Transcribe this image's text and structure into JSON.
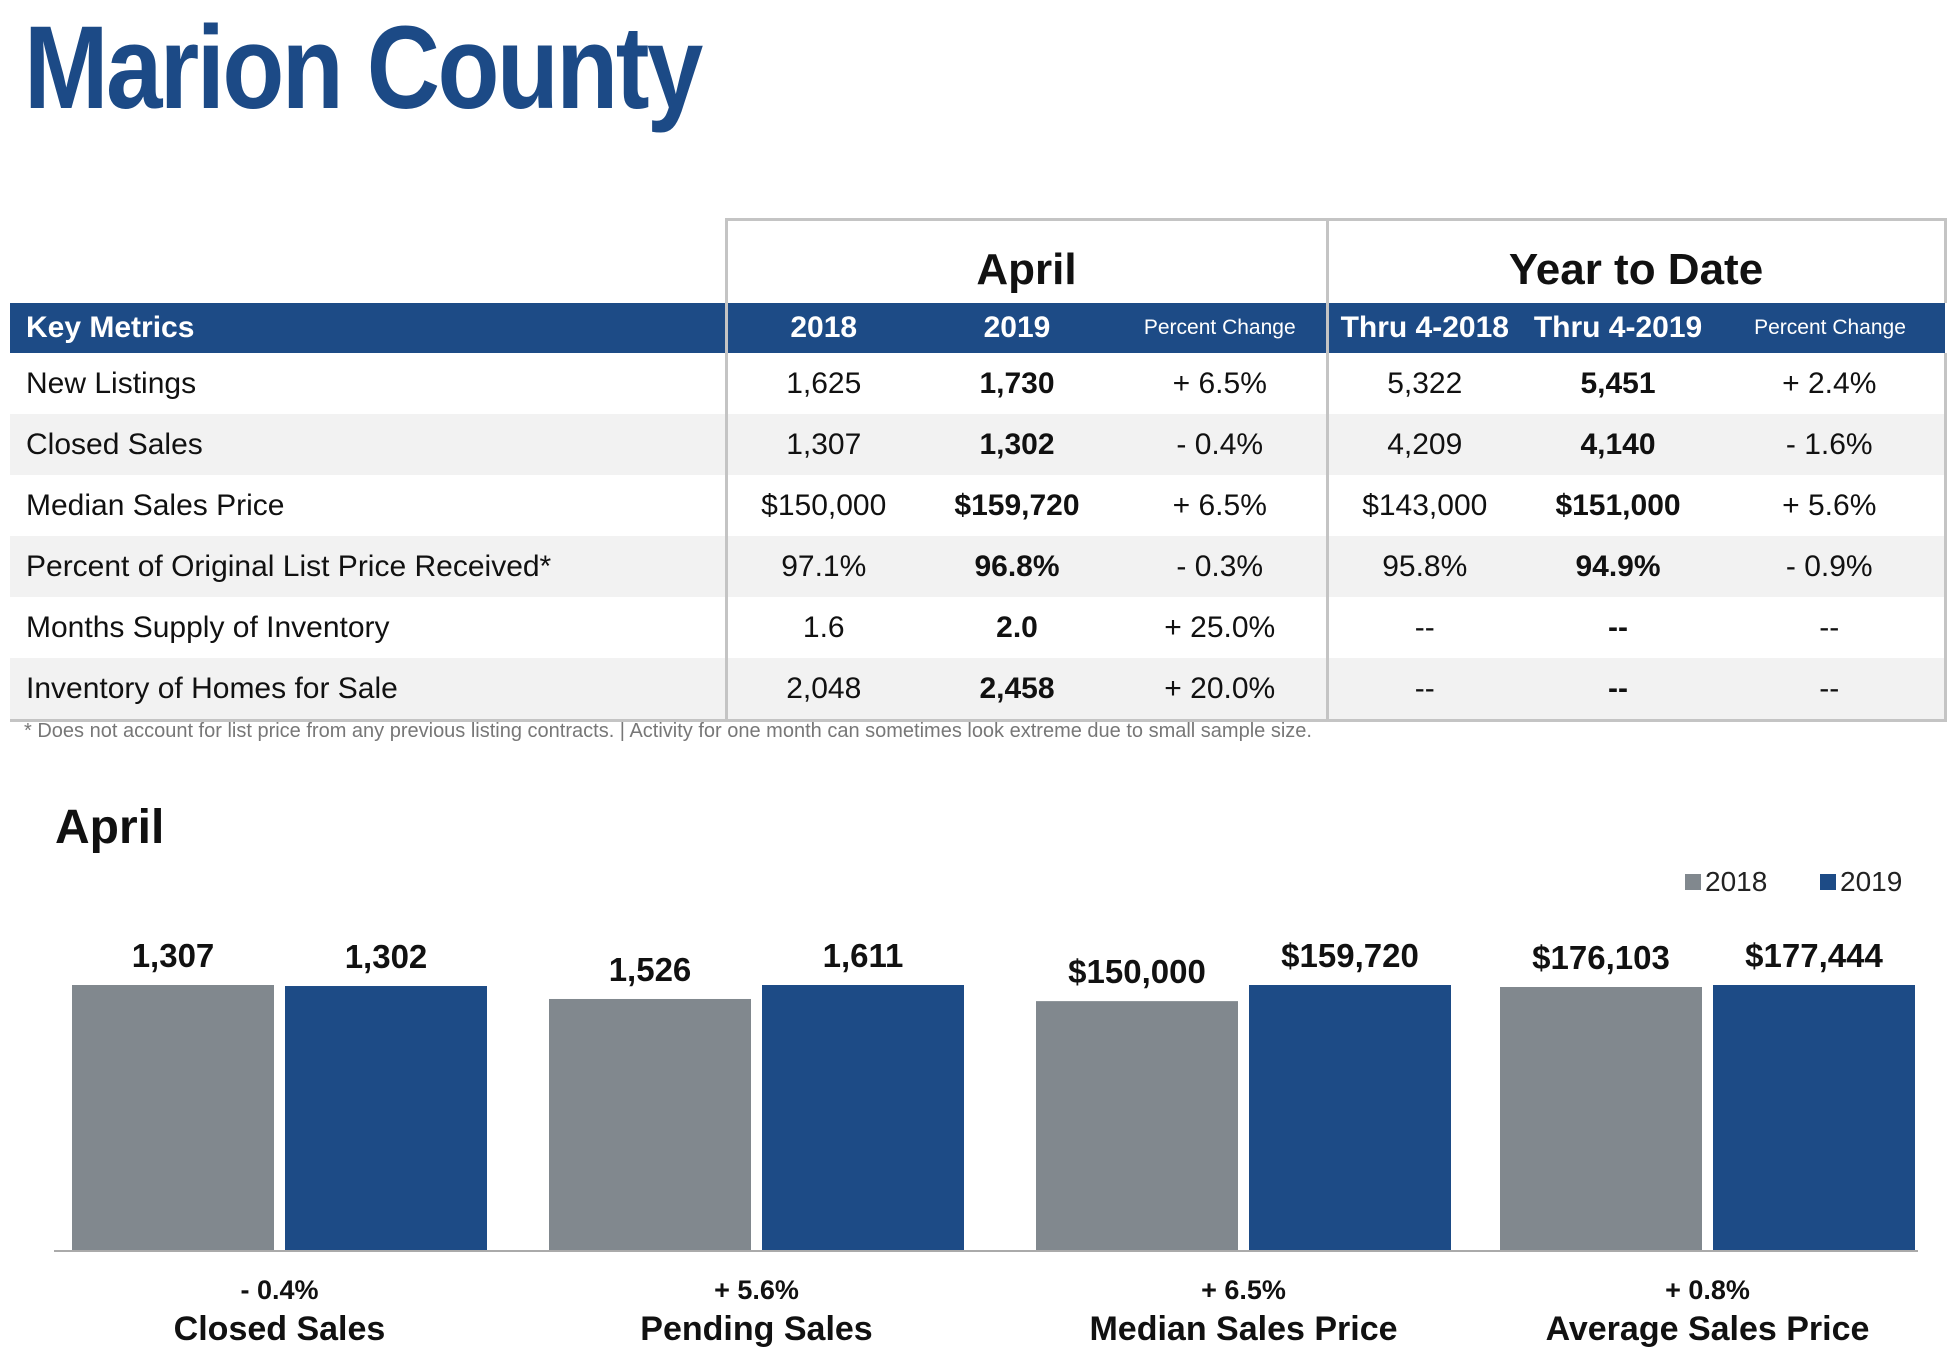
{
  "title": "Marion County",
  "table": {
    "april_label": "April",
    "ytd_label": "Year to Date",
    "headers": [
      "Key Metrics",
      "2018",
      "2019",
      "Percent Change",
      "Thru 4-2018",
      "Thru 4-2019",
      "Percent Change"
    ],
    "rows": [
      [
        "New Listings",
        "1,625",
        "1,730",
        "+ 6.5%",
        "5,322",
        "5,451",
        "+ 2.4%"
      ],
      [
        "Closed Sales",
        "1,307",
        "1,302",
        "- 0.4%",
        "4,209",
        "4,140",
        "- 1.6%"
      ],
      [
        "Median Sales Price",
        "$150,000",
        "$159,720",
        "+ 6.5%",
        "$143,000",
        "$151,000",
        "+ 5.6%"
      ],
      [
        "Percent of Original List Price Received*",
        "97.1%",
        "96.8%",
        "- 0.3%",
        "95.8%",
        "94.9%",
        "- 0.9%"
      ],
      [
        "Months Supply of Inventory",
        "1.6",
        "2.0",
        "+ 25.0%",
        "--",
        "--",
        "--"
      ],
      [
        "Inventory of Homes for Sale",
        "2,048",
        "2,458",
        "+ 20.0%",
        "--",
        "--",
        "--"
      ]
    ]
  },
  "footnote": "* Does not account for list price from any previous listing contracts.  |  Activity for one month can sometimes look extreme due to small sample size.",
  "chart_data": {
    "type": "bar",
    "title": "April",
    "legend_position": "top-right",
    "colors": {
      "2018": "#81888e",
      "2019": "#1d4b86"
    },
    "series_names": [
      "2018",
      "2019"
    ],
    "groups": [
      {
        "category": "Closed Sales",
        "change": "- 0.4%",
        "values": [
          1307,
          1302
        ],
        "labels": [
          "1,307",
          "1,302"
        ]
      },
      {
        "category": "Pending Sales",
        "change": "+ 5.6%",
        "values": [
          1526,
          1611
        ],
        "labels": [
          "1,526",
          "1,611"
        ]
      },
      {
        "category": "Median Sales Price",
        "change": "+ 6.5%",
        "values": [
          150000,
          159720
        ],
        "labels": [
          "$150,000",
          "$159,720"
        ]
      },
      {
        "category": "Average Sales Price",
        "change": "+ 0.8%",
        "values": [
          176103,
          177444
        ],
        "labels": [
          "$176,103",
          "$177,444"
        ]
      }
    ]
  }
}
